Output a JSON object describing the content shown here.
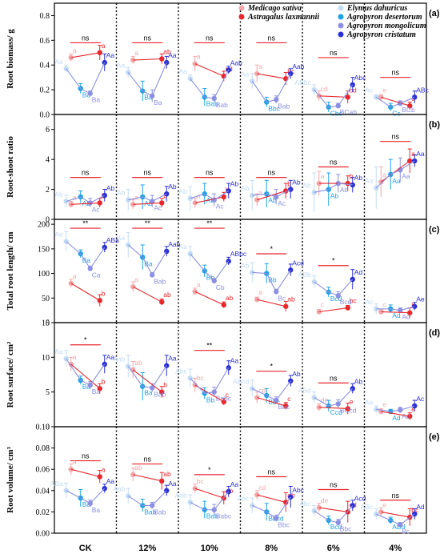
{
  "colors": {
    "Medicago sativa": "#f4a6a8",
    "Astragalus laxmannii": "#e8262d",
    "Elymus dahuricus": "#c3dcf3",
    "Agropyron desertorum": "#1ea2e6",
    "Agropyron mongolicum": "#8c90e2",
    "Agropyron cristatum": "#2a2fd6",
    "sig_line": "#e8262d"
  },
  "legend": [
    {
      "name": "Medicago sativa",
      "column": 0
    },
    {
      "name": "Astragalus laxmannii",
      "column": 0
    },
    {
      "name": "Elymus dahuricus",
      "column": 1
    },
    {
      "name": "Agropyron desertorum",
      "column": 1
    },
    {
      "name": "Agropyron mongolicum",
      "column": 1
    },
    {
      "name": "Agropyron cristatum",
      "column": 1
    }
  ],
  "chart_data": {
    "type": "line",
    "categories": [
      "CK",
      "12%",
      "10%",
      "8%",
      "6%",
      "4%"
    ],
    "series_names": [
      "Medicago sativa",
      "Astragalus laxmannii",
      "Elymus dahuricus",
      "Agropyron desertorum",
      "Agropyron mongolicum",
      "Agropyron cristatum"
    ],
    "panels": [
      {
        "label": "(a)",
        "ylabel": "Root biomass/ g",
        "ylim": [
          0,
          0.9
        ],
        "ticks": [
          0.0,
          0.2,
          0.4,
          0.6,
          0.8
        ],
        "decimals": 1,
        "sig": [
          "ns",
          "ns",
          "ns",
          "ns",
          "ns",
          "ns"
        ],
        "sig_y": [
          0.58,
          0.58,
          0.58,
          0.58,
          0.46,
          0.3
        ],
        "series": [
          {
            "name": "Medicago sativa",
            "values": [
              0.46,
              0.44,
              0.41,
              0.33,
              0.15,
              0.14
            ],
            "err": [
              0.03,
              0.03,
              0.06,
              0.07,
              0.04,
              0.02
            ],
            "letters": [
              "a",
              "a",
              "a",
              "a",
              "cd",
              "e"
            ]
          },
          {
            "name": "Astragalus laxmannii",
            "values": [
              0.5,
              0.45,
              0.31,
              0.29,
              0.14,
              0.07
            ],
            "err": [
              0.06,
              0.04,
              0.04,
              0.05,
              0.05,
              0.03
            ],
            "letters": [
              "a",
              "ab",
              "cd",
              "bc",
              "cd",
              "c"
            ]
          },
          {
            "name": "Elymus dahuricus",
            "values": [
              0.37,
              0.34,
              0.29,
              0.27,
              0.2,
              0.14
            ],
            "err": [
              0.03,
              0.04,
              0.03,
              0.06,
              0.04,
              0.02
            ],
            "letters": [
              "Aa",
              "Aa",
              "Aa",
              "Aa",
              "ABbc",
              "Ac"
            ]
          },
          {
            "name": "Agropyron desertorum",
            "values": [
              0.21,
              0.19,
              0.14,
              0.1,
              0.06,
              0.06
            ],
            "err": [
              0.04,
              0.08,
              0.07,
              0.04,
              0.04,
              0.03
            ],
            "letters": [
              "Ba",
              "Ba",
              "Bab",
              "Bbc",
              "Cbc",
              "Cc"
            ]
          },
          {
            "name": "Agropyron mongolicum",
            "values": [
              0.17,
              0.15,
              0.13,
              0.12,
              0.07,
              0.09
            ],
            "err": [
              0.02,
              0.05,
              0.03,
              0.03,
              0.02,
              0.02
            ],
            "letters": [
              "Ba",
              "Ba",
              "Bab",
              "Bab",
              "BCab",
              "BCb"
            ]
          },
          {
            "name": "Agropyron cristatum",
            "values": [
              0.42,
              0.42,
              0.36,
              0.33,
              0.24,
              0.14
            ],
            "err": [
              0.07,
              0.05,
              0.03,
              0.04,
              0.06,
              0.05
            ],
            "letters": [
              "Aa",
              "Aa",
              "Aab",
              "Aab",
              "Abc",
              "ABc"
            ]
          }
        ]
      },
      {
        "label": "(b)",
        "ylabel": "Root-shoot ratio",
        "ylim": [
          0,
          7
        ],
        "ticks": [
          0,
          2,
          4,
          6
        ],
        "decimals": 0,
        "sig": [
          "ns",
          "ns",
          "ns",
          "ns",
          "ns",
          "ns"
        ],
        "sig_y": [
          2.8,
          2.8,
          2.8,
          2.8,
          3.5,
          5.2
        ],
        "series": [
          {
            "name": "Medicago sativa",
            "values": [
              1.0,
              1.0,
              1.1,
              1.3,
              2.4,
              2.5
            ],
            "err": [
              0.2,
              0.3,
              0.3,
              0.4,
              0.8,
              1.0
            ],
            "letters": [
              "a",
              "a",
              "a",
              "a",
              "a",
              "a"
            ]
          },
          {
            "name": "Astragalus laxmannii",
            "values": [
              1.1,
              1.1,
              1.5,
              1.9,
              2.4,
              3.9
            ],
            "err": [
              0.3,
              0.3,
              0.3,
              0.5,
              0.5,
              0.8
            ],
            "letters": [
              "b",
              "b",
              "b",
              "b",
              "b",
              "a"
            ]
          },
          {
            "name": "Elymus dahuricus",
            "values": [
              1.2,
              1.3,
              1.4,
              1.6,
              1.8,
              2.1
            ],
            "err": [
              0.4,
              0.7,
              0.8,
              1.0,
              1.3,
              1.4
            ],
            "letters": [
              "Ab",
              "Ab",
              "Ab",
              "Ab",
              "Ab",
              "Aa"
            ]
          },
          {
            "name": "Agropyron desertorum",
            "values": [
              1.5,
              1.5,
              1.7,
              1.7,
              2.0,
              3.0
            ],
            "err": [
              0.4,
              0.8,
              0.7,
              0.9,
              1.1,
              1.0
            ],
            "letters": [
              "Ab",
              "Ab",
              "Ab",
              "Ab",
              "Ab",
              "Aa"
            ]
          },
          {
            "name": "Agropyron mongolicum",
            "values": [
              1.1,
              1.2,
              1.3,
              1.5,
              2.4,
              3.3
            ],
            "err": [
              0.3,
              0.4,
              0.4,
              0.5,
              0.6,
              0.8
            ],
            "letters": [
              "Ac",
              "Ac",
              "Ac",
              "Ac",
              "Ab",
              "Aa"
            ]
          },
          {
            "name": "Agropyron cristatum",
            "values": [
              1.6,
              1.7,
              1.9,
              2.0,
              2.3,
              3.9
            ],
            "err": [
              0.4,
              0.5,
              0.5,
              0.6,
              0.5,
              0.4
            ],
            "letters": [
              "Ab",
              "Ab",
              "Ab",
              "Ab",
              "Ab",
              "Aa"
            ]
          }
        ]
      },
      {
        "label": "(c)",
        "ylabel": "Total root length/ cm",
        "ylim": [
          0,
          210
        ],
        "ticks": [
          0,
          50,
          100,
          150,
          200
        ],
        "decimals": 0,
        "sig": [
          "**",
          "**",
          "**",
          "*",
          "*",
          ""
        ],
        "sig_y": [
          192,
          192,
          192,
          140,
          116,
          0
        ],
        "series": [
          {
            "name": "Medicago sativa",
            "values": [
              80,
              73,
              63,
              47,
              22,
              22
            ],
            "err": [
              8,
              10,
              7,
              5,
              5,
              5
            ],
            "letters": [
              "a",
              "a",
              "a",
              "a",
              "c",
              "c"
            ]
          },
          {
            "name": "Astragalus laxmannii",
            "values": [
              45,
              42,
              36,
              33,
              30,
              20
            ],
            "err": [
              12,
              6,
              6,
              10,
              5,
              10
            ],
            "letters": [
              "b",
              "ab",
              "ab",
              "ab",
              "bc",
              "b"
            ]
          },
          {
            "name": "Elymus dahuricus",
            "values": [
              165,
              158,
              140,
              102,
              83,
              28
            ],
            "err": [
              20,
              25,
              15,
              20,
              12,
              10
            ],
            "letters": [
              "Aa",
              "Aa",
              "Aa",
              "Ab",
              "ABb",
              "Ac"
            ]
          },
          {
            "name": "Agropyron desertorum",
            "values": [
              140,
              133,
              105,
              100,
              62,
              28
            ],
            "err": [
              8,
              25,
              12,
              20,
              10,
              8
            ],
            "letters": [
              "Ba",
              "Ba",
              "Bb",
              "Bb",
              "Bcd",
              "Ad"
            ]
          },
          {
            "name": "Agropyron mongolicum",
            "values": [
              110,
              97,
              85,
              63,
              55,
              25
            ],
            "err": [
              5,
              5,
              5,
              5,
              8,
              5
            ],
            "letters": [
              "Ca",
              "Bab",
              "Cb",
              "Bc",
              "Bcd",
              "Ad"
            ]
          },
          {
            "name": "Agropyron cristatum",
            "values": [
              153,
              145,
              125,
              107,
              88,
              33
            ],
            "err": [
              10,
              10,
              8,
              12,
              20,
              8
            ],
            "letters": [
              "ABa",
              "Aab",
              "ABbc",
              "Acd",
              "Ad",
              "Ae"
            ]
          }
        ]
      },
      {
        "label": "(d)",
        "ylabel": "Root surface/ cm²",
        "ylim": [
          0,
          15
        ],
        "ticks": [
          0,
          5,
          10,
          15
        ],
        "decimals": 0,
        "sig": [
          "*",
          "",
          "**",
          "*",
          "ns",
          ""
        ],
        "sig_y": [
          11.8,
          0,
          11.0,
          8.0,
          6.3,
          0
        ],
        "series": [
          {
            "name": "Medicago sativa",
            "values": [
              9.0,
              8.2,
              6.0,
              4.2,
              2.8,
              2.2
            ],
            "err": [
              1.0,
              1.2,
              1.0,
              0.8,
              0.5,
              0.4
            ],
            "letters": [
              "a",
              "ab",
              "bc",
              "cd",
              "de",
              "e"
            ]
          },
          {
            "name": "Astragalus laxmannii",
            "values": [
              5.5,
              5.0,
              3.6,
              3.0,
              2.6,
              1.5
            ],
            "err": [
              0.7,
              0.8,
              0.5,
              0.5,
              0.8,
              0.5
            ],
            "letters": [
              "b",
              "b",
              "c",
              "c",
              "e",
              "e"
            ]
          },
          {
            "name": "Elymus dahuricus",
            "values": [
              9.8,
              8.7,
              7.0,
              5.5,
              4.2,
              2.5
            ],
            "err": [
              1.2,
              1.6,
              1.3,
              1.2,
              0.8,
              0.5
            ],
            "letters": [
              "Aa",
              "Aab",
              "Abc",
              "ABcd",
              "ABd",
              "Ae"
            ]
          },
          {
            "name": "Agropyron desertorum",
            "values": [
              6.7,
              5.8,
              4.8,
              4.5,
              3.0,
              2.2
            ],
            "err": [
              0.6,
              2.0,
              0.8,
              1.0,
              0.8,
              0.3
            ],
            "letters": [
              "Ba",
              "Ba",
              "Bb",
              "Bbc",
              "Ccd",
              "Ad"
            ]
          },
          {
            "name": "Agropyron mongolicum",
            "values": [
              6.0,
              5.6,
              5.0,
              3.8,
              3.3,
              2.4
            ],
            "err": [
              0.5,
              0.6,
              0.7,
              0.5,
              0.6,
              0.4
            ],
            "letters": [
              "Ba",
              "Bab",
              "Babc",
              "Bbc",
              "BCcd",
              "Ad"
            ]
          },
          {
            "name": "Agropyron cristatum",
            "values": [
              9.0,
              8.8,
              8.5,
              6.6,
              5.5,
              3.0
            ],
            "err": [
              1.3,
              1.5,
              1.0,
              0.8,
              0.7,
              0.8
            ],
            "letters": [
              "Aa",
              "Aa",
              "Aa",
              "Ab",
              "Ab",
              "Ac"
            ]
          }
        ]
      },
      {
        "label": "(e)",
        "ylabel": "Root volume/ cm³",
        "ylim": [
          0,
          0.1
        ],
        "ticks": [
          0.0,
          0.02,
          0.04,
          0.06,
          0.08,
          0.1
        ],
        "decimals": 2,
        "sig": [
          "ns",
          "ns",
          "*",
          "ns",
          "ns",
          "ns"
        ],
        "sig_y": [
          0.068,
          0.065,
          0.055,
          0.053,
          0.041,
          0.031
        ],
        "series": [
          {
            "name": "Medicago sativa",
            "values": [
              0.06,
              0.055,
              0.042,
              0.036,
              0.024,
              0.02
            ],
            "err": [
              0.005,
              0.006,
              0.004,
              0.004,
              0.004,
              0.004
            ],
            "letters": [
              "a",
              "ab",
              "bc",
              "cd",
              "de",
              "e"
            ]
          },
          {
            "name": "Astragalus laxmannii",
            "values": [
              0.053,
              0.049,
              0.033,
              0.029,
              0.02,
              0.015
            ],
            "err": [
              0.006,
              0.008,
              0.006,
              0.009,
              0.01,
              0.008
            ],
            "letters": [
              "a",
              "ab",
              "ab",
              "ab",
              "cd",
              "bc"
            ]
          },
          {
            "name": "Elymus dahuricus",
            "values": [
              0.04,
              0.035,
              0.029,
              0.026,
              0.021,
              0.018
            ],
            "err": [
              0.007,
              0.007,
              0.007,
              0.007,
              0.005,
              0.005
            ],
            "letters": [
              "ABa",
              "Aab",
              "Aab",
              "Abc",
              "Abc",
              "ABc"
            ]
          },
          {
            "name": "Agropyron desertorum",
            "values": [
              0.033,
              0.026,
              0.022,
              0.02,
              0.012,
              0.012
            ],
            "err": [
              0.008,
              0.006,
              0.008,
              0.008,
              0.004,
              0.003
            ],
            "letters": [
              "Ba",
              "Bab",
              "Bab",
              "Bbcd",
              "Bcd",
              "ABd"
            ]
          },
          {
            "name": "Agropyron mongolicum",
            "values": [
              0.028,
              0.026,
              0.022,
              0.014,
              0.01,
              0.008
            ],
            "err": [
              0.003,
              0.003,
              0.005,
              0.003,
              0.003,
              0.002
            ],
            "letters": [
              "Ba",
              "Bab",
              "Babc",
              "Bbc",
              "Bbc",
              "Bc"
            ]
          },
          {
            "name": "Agropyron cristatum",
            "values": [
              0.042,
              0.04,
              0.039,
              0.034,
              0.026,
              0.018
            ],
            "err": [
              0.004,
              0.005,
              0.005,
              0.01,
              0.005,
              0.005
            ],
            "letters": [
              "Aa",
              "Aa",
              "Aa",
              "Abc",
              "Acd",
              "Ad"
            ]
          }
        ]
      }
    ]
  }
}
